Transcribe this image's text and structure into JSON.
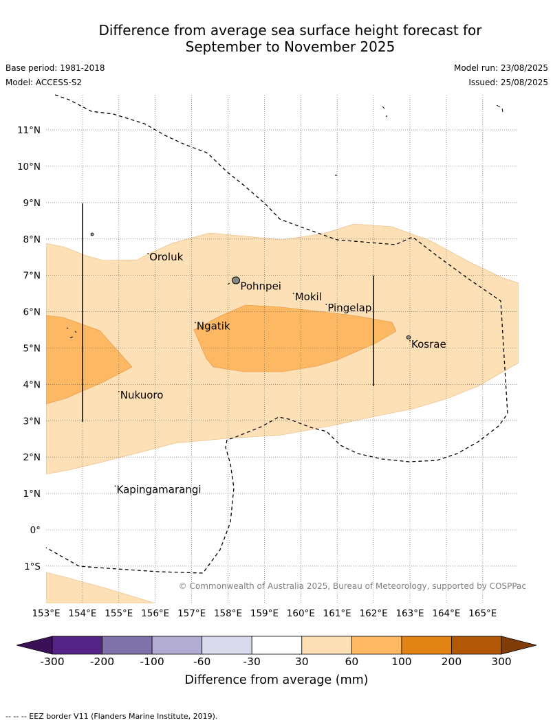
{
  "title": {
    "line1": "Difference from average sea surface height forecast for",
    "line2": "September to November 2025"
  },
  "meta": {
    "base_period": "Base period: 1981-2018",
    "model": "Model: ACCESS-S2",
    "model_run": "Model run: 23/08/2025",
    "issued": "Issued: 25/08/2025"
  },
  "copyright": "© Commonwealth of Australia 2025, Bureau of Meteorology, supported by COSPPac",
  "map": {
    "lon_range": [
      153,
      166
    ],
    "lat_range": [
      -2,
      12
    ],
    "lon_ticks": [
      "153°E",
      "154°E",
      "155°E",
      "156°E",
      "157°E",
      "158°E",
      "159°E",
      "160°E",
      "161°E",
      "162°E",
      "163°E",
      "164°E",
      "165°E"
    ],
    "lat_ticks": [
      "11°N",
      "10°N",
      "9°N",
      "8°N",
      "7°N",
      "6°N",
      "5°N",
      "4°N",
      "3°N",
      "2°N",
      "1°N",
      "0°",
      "1°S"
    ],
    "places": [
      {
        "name": "Oroluk",
        "lon": 155.8,
        "lat": 7.6
      },
      {
        "name": "Pohnpei",
        "lon": 158.3,
        "lat": 6.8
      },
      {
        "name": "Mokil",
        "lon": 159.8,
        "lat": 6.5
      },
      {
        "name": "Pingelap",
        "lon": 160.7,
        "lat": 6.2
      },
      {
        "name": "Ngatik",
        "lon": 157.1,
        "lat": 5.7
      },
      {
        "name": "Kosrae",
        "lon": 163.0,
        "lat": 5.2
      },
      {
        "name": "Nukuoro",
        "lon": 155.0,
        "lat": 3.8
      },
      {
        "name": "Kapingamarangi",
        "lon": 154.9,
        "lat": 1.2
      }
    ]
  },
  "colorbar": {
    "ticks": [
      "-300",
      "-200",
      "-100",
      "-60",
      "-30",
      "30",
      "60",
      "100",
      "200",
      "300"
    ],
    "colors": [
      "#3b1056",
      "#542587",
      "#8073ac",
      "#b2abd2",
      "#d8daeb",
      "#ffffff",
      "#fee0b6",
      "#fdb863",
      "#e08214",
      "#b35806",
      "#7f3b08"
    ],
    "label": "Difference from average (mm)"
  },
  "footer": "--  --  -- EEZ border V11 (Flanders Marine Institute, 2019)."
}
